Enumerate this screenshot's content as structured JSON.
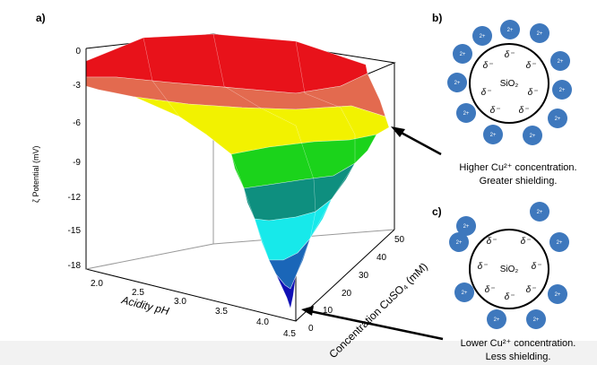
{
  "panels": {
    "a": "a)",
    "b": "b)",
    "c": "c)"
  },
  "surface_plot": {
    "zlabel": "ζ Potential (mV)",
    "xlabel": "Acidity pH",
    "ylabel": "Concentration CuSO₄ (mM)",
    "z_ticks": [
      "-18",
      "-15",
      "-12",
      "-9",
      "-6",
      "-3",
      "0"
    ],
    "x_ticks": [
      "2.0",
      "2.5",
      "3.0",
      "3.5",
      "4.0",
      "4.5"
    ],
    "y_ticks": [
      "0",
      "10",
      "20",
      "30",
      "40",
      "50"
    ]
  },
  "colors": {
    "red": "#e8121a",
    "orange": "#e36a4f",
    "yellow": "#f2f200",
    "green": "#1bd31b",
    "teal": "#0e8f7f",
    "cyan": "#17e9ea",
    "blue": "#1a66b8",
    "navy": "#1010b5",
    "particle": "#3e78bd"
  },
  "annotation_high": {
    "line1": "Higher Cu²⁺ concentration.",
    "line2": "Greater shielding."
  },
  "annotation_low": {
    "line1": "Lower Cu²⁺ concentration.",
    "line2": "Less shielding."
  },
  "particle": {
    "core_label": "SiO₂",
    "charge_symbol": "δ⁻",
    "ion_label": "2+"
  }
}
